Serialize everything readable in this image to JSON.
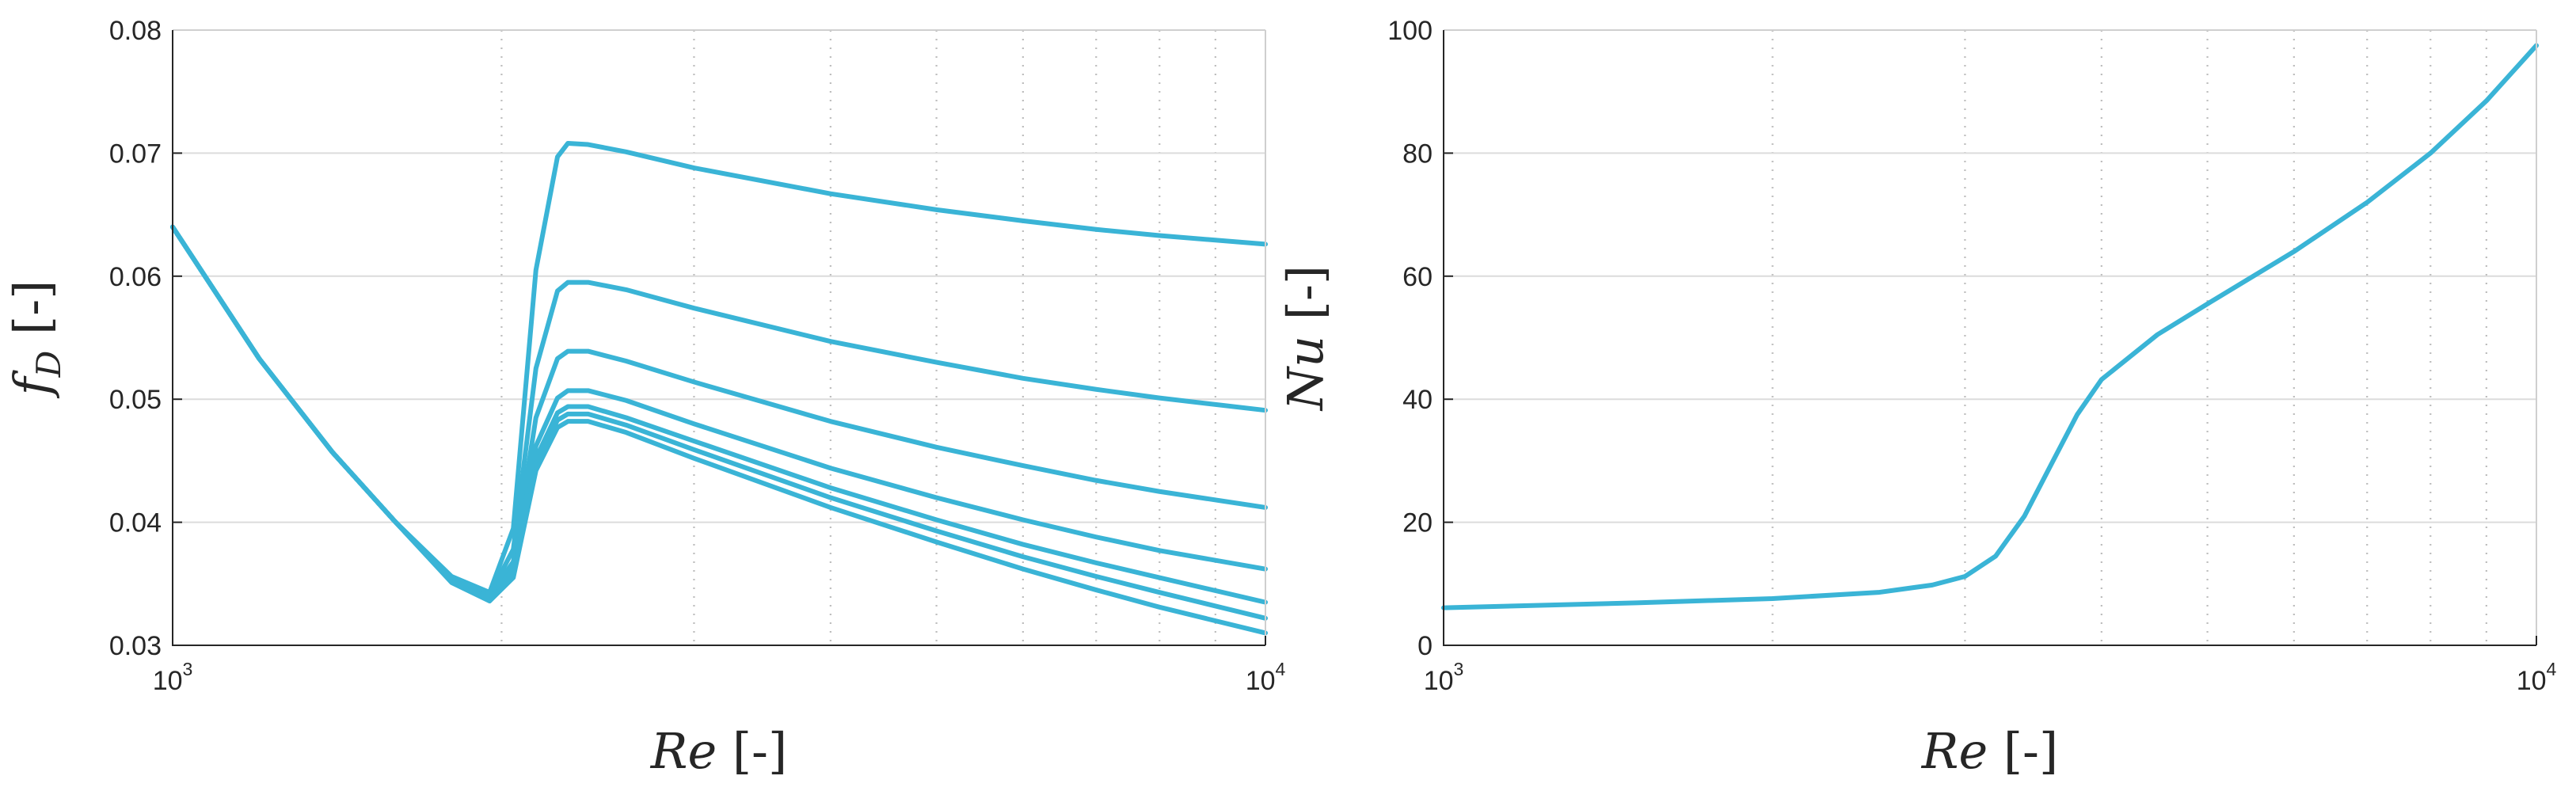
{
  "colors": {
    "series": "#3ab4d6",
    "axis": "#262626",
    "grid": "#dcdcdc"
  },
  "chart_data": [
    {
      "type": "line",
      "title": "",
      "xlabel": "Re [-]",
      "xlabel_parts": {
        "symbol": "Re",
        "unit": " [-]"
      },
      "ylabel": "f_D [-]",
      "ylabel_parts": {
        "symbol": "f",
        "subscript": "D",
        "unit": " [-]"
      },
      "xscale": "log",
      "xlim": [
        1000,
        10000
      ],
      "ylim": [
        0.03,
        0.08
      ],
      "grid": true,
      "legend": "none",
      "x_ticks": [
        {
          "base": "10",
          "exp": "3"
        },
        {
          "base": "10",
          "exp": "4"
        }
      ],
      "y_ticks": [
        "0.03",
        "0.04",
        "0.05",
        "0.06",
        "0.07",
        "0.08"
      ],
      "series": [
        {
          "x": [
            1000,
            1200,
            1400,
            1600,
            1800,
            1950,
            2050,
            2150,
            2250,
            2300,
            2400,
            2600,
            3000,
            4000,
            5000,
            6000,
            7000,
            8000,
            10000
          ],
          "y": [
            0.064,
            0.0533,
            0.0457,
            0.04,
            0.0356,
            0.0343,
            0.0395,
            0.0605,
            0.0697,
            0.0708,
            0.0707,
            0.0701,
            0.0688,
            0.0667,
            0.0654,
            0.0645,
            0.0638,
            0.0633,
            0.0626
          ]
        },
        {
          "x": [
            1000,
            1200,
            1400,
            1600,
            1800,
            1950,
            2050,
            2150,
            2250,
            2300,
            2400,
            2600,
            3000,
            4000,
            5000,
            6000,
            7000,
            8000,
            10000
          ],
          "y": [
            0.064,
            0.0533,
            0.0457,
            0.04,
            0.0355,
            0.0341,
            0.0378,
            0.0525,
            0.0588,
            0.0595,
            0.0595,
            0.0589,
            0.0574,
            0.0547,
            0.053,
            0.0517,
            0.0508,
            0.0501,
            0.0491
          ]
        },
        {
          "x": [
            1000,
            1200,
            1400,
            1600,
            1800,
            1950,
            2050,
            2150,
            2250,
            2300,
            2400,
            2600,
            3000,
            4000,
            5000,
            6000,
            7000,
            8000,
            10000
          ],
          "y": [
            0.064,
            0.0533,
            0.0457,
            0.04,
            0.0354,
            0.034,
            0.0368,
            0.0485,
            0.0533,
            0.0539,
            0.0539,
            0.0531,
            0.0514,
            0.0482,
            0.0461,
            0.0446,
            0.0434,
            0.0425,
            0.0412
          ]
        },
        {
          "x": [
            1000,
            1200,
            1400,
            1600,
            1800,
            1950,
            2050,
            2150,
            2250,
            2300,
            2400,
            2600,
            3000,
            4000,
            5000,
            6000,
            7000,
            8000,
            10000
          ],
          "y": [
            0.064,
            0.0533,
            0.0457,
            0.04,
            0.0353,
            0.0339,
            0.0362,
            0.0462,
            0.0501,
            0.0507,
            0.0507,
            0.0499,
            0.048,
            0.0444,
            0.042,
            0.0402,
            0.0388,
            0.0377,
            0.0362
          ]
        },
        {
          "x": [
            1000,
            1200,
            1400,
            1600,
            1800,
            1950,
            2050,
            2150,
            2250,
            2300,
            2400,
            2600,
            3000,
            4000,
            5000,
            6000,
            7000,
            8000,
            10000
          ],
          "y": [
            0.064,
            0.0533,
            0.0457,
            0.04,
            0.0352,
            0.0338,
            0.0359,
            0.0452,
            0.0489,
            0.0494,
            0.0494,
            0.0485,
            0.0466,
            0.0428,
            0.0402,
            0.0382,
            0.0367,
            0.0355,
            0.0335
          ]
        },
        {
          "x": [
            1000,
            1200,
            1400,
            1600,
            1800,
            1950,
            2050,
            2150,
            2250,
            2300,
            2400,
            2600,
            3000,
            4000,
            5000,
            6000,
            7000,
            8000,
            10000
          ],
          "y": [
            0.064,
            0.0533,
            0.0457,
            0.04,
            0.0352,
            0.0337,
            0.0357,
            0.0447,
            0.0483,
            0.0488,
            0.0488,
            0.0479,
            0.0459,
            0.042,
            0.0393,
            0.0372,
            0.0356,
            0.0343,
            0.0322
          ]
        },
        {
          "x": [
            1000,
            1200,
            1400,
            1600,
            1800,
            1950,
            2050,
            2150,
            2250,
            2300,
            2400,
            2600,
            3000,
            4000,
            5000,
            6000,
            7000,
            8000,
            10000
          ],
          "y": [
            0.064,
            0.0533,
            0.0457,
            0.04,
            0.0351,
            0.0336,
            0.0355,
            0.0442,
            0.0477,
            0.0482,
            0.0482,
            0.0473,
            0.0452,
            0.0412,
            0.0384,
            0.0362,
            0.0345,
            0.0331,
            0.031
          ]
        }
      ]
    },
    {
      "type": "line",
      "title": "",
      "xlabel": "Re [-]",
      "xlabel_parts": {
        "symbol": "Re",
        "unit": " [-]"
      },
      "ylabel": "Nu [-]",
      "ylabel_parts": {
        "symbol": "Nu",
        "subscript": "",
        "unit": " [-]"
      },
      "xscale": "log",
      "xlim": [
        1000,
        10000
      ],
      "ylim": [
        0,
        100
      ],
      "grid": true,
      "legend": "none",
      "x_ticks": [
        {
          "base": "10",
          "exp": "3"
        },
        {
          "base": "10",
          "exp": "4"
        }
      ],
      "y_ticks": [
        "0",
        "20",
        "40",
        "60",
        "80",
        "100"
      ],
      "series": [
        {
          "x": [
            1000,
            1500,
            2000,
            2500,
            2800,
            3000,
            3200,
            3400,
            3600,
            3800,
            4000,
            4500,
            5000,
            6000,
            7000,
            8000,
            9000,
            10000
          ],
          "y": [
            6.1,
            6.9,
            7.6,
            8.6,
            9.8,
            11.2,
            14.5,
            21.0,
            29.5,
            37.5,
            43.2,
            50.5,
            55.5,
            64.0,
            72.0,
            80.0,
            88.5,
            97.5
          ]
        }
      ]
    }
  ]
}
